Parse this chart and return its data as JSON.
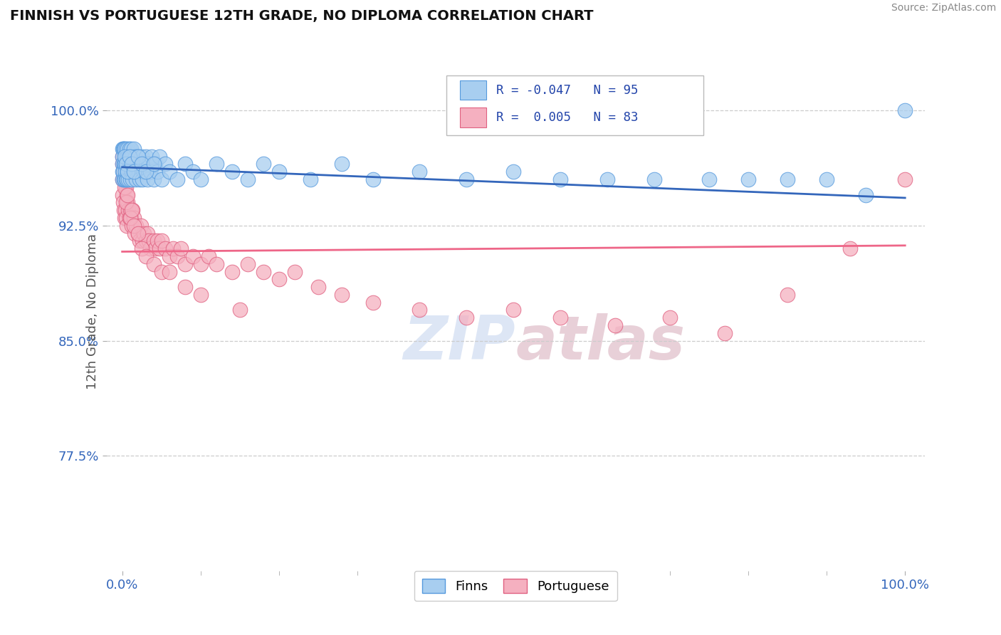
{
  "title": "FINNISH VS PORTUGUESE 12TH GRADE, NO DIPLOMA CORRELATION CHART",
  "source": "Source: ZipAtlas.com",
  "ylabel": "12th Grade, No Diploma",
  "color_finns": "#a8cef0",
  "color_finns_edge": "#5599dd",
  "color_portuguese": "#f5b0c0",
  "color_portuguese_edge": "#e06080",
  "color_line_finns": "#3366bb",
  "color_line_portuguese": "#ee6688",
  "ytick_values": [
    0.775,
    0.85,
    0.925,
    1.0
  ],
  "ytick_labels": [
    "77.5%",
    "85.0%",
    "92.5%",
    "100.0%"
  ],
  "xtick_values": [
    0.0,
    1.0
  ],
  "xtick_labels": [
    "0.0%",
    "100.0%"
  ],
  "background_color": "#ffffff",
  "grid_color": "#cccccc",
  "watermark_color": "#dde6f5",
  "finns_x": [
    0.0,
    0.0,
    0.0,
    0.0,
    0.0,
    0.001,
    0.001,
    0.002,
    0.002,
    0.002,
    0.003,
    0.003,
    0.003,
    0.004,
    0.004,
    0.005,
    0.005,
    0.005,
    0.006,
    0.006,
    0.006,
    0.007,
    0.007,
    0.008,
    0.008,
    0.009,
    0.009,
    0.01,
    0.01,
    0.011,
    0.011,
    0.012,
    0.012,
    0.013,
    0.014,
    0.015,
    0.015,
    0.016,
    0.017,
    0.018,
    0.019,
    0.02,
    0.021,
    0.022,
    0.023,
    0.025,
    0.026,
    0.027,
    0.028,
    0.03,
    0.032,
    0.034,
    0.036,
    0.038,
    0.04,
    0.042,
    0.045,
    0.048,
    0.05,
    0.055,
    0.06,
    0.07,
    0.08,
    0.09,
    0.1,
    0.12,
    0.14,
    0.16,
    0.18,
    0.2,
    0.24,
    0.28,
    0.32,
    0.38,
    0.44,
    0.5,
    0.56,
    0.62,
    0.68,
    0.75,
    0.8,
    0.85,
    0.9,
    0.95,
    1.0,
    0.003,
    0.005,
    0.007,
    0.009,
    0.012,
    0.015,
    0.02,
    0.025,
    0.03,
    0.04
  ],
  "finns_y": [
    0.975,
    0.97,
    0.965,
    0.96,
    0.955,
    0.975,
    0.96,
    0.975,
    0.965,
    0.955,
    0.975,
    0.965,
    0.955,
    0.97,
    0.96,
    0.975,
    0.965,
    0.955,
    0.97,
    0.965,
    0.955,
    0.975,
    0.96,
    0.97,
    0.955,
    0.965,
    0.975,
    0.97,
    0.955,
    0.965,
    0.975,
    0.96,
    0.97,
    0.955,
    0.965,
    0.975,
    0.96,
    0.965,
    0.97,
    0.955,
    0.965,
    0.97,
    0.96,
    0.955,
    0.965,
    0.97,
    0.955,
    0.965,
    0.96,
    0.97,
    0.955,
    0.965,
    0.96,
    0.97,
    0.955,
    0.965,
    0.96,
    0.97,
    0.955,
    0.965,
    0.96,
    0.955,
    0.965,
    0.96,
    0.955,
    0.965,
    0.96,
    0.955,
    0.965,
    0.96,
    0.955,
    0.965,
    0.955,
    0.96,
    0.955,
    0.96,
    0.955,
    0.955,
    0.955,
    0.955,
    0.955,
    0.955,
    0.955,
    0.945,
    1.0,
    0.97,
    0.965,
    0.96,
    0.97,
    0.965,
    0.96,
    0.97,
    0.965,
    0.96,
    0.965
  ],
  "portuguese_x": [
    0.0,
    0.0,
    0.0,
    0.0,
    0.001,
    0.001,
    0.002,
    0.002,
    0.003,
    0.003,
    0.004,
    0.004,
    0.005,
    0.005,
    0.006,
    0.006,
    0.007,
    0.008,
    0.009,
    0.01,
    0.011,
    0.012,
    0.013,
    0.015,
    0.016,
    0.018,
    0.02,
    0.022,
    0.024,
    0.026,
    0.028,
    0.03,
    0.032,
    0.034,
    0.036,
    0.04,
    0.042,
    0.045,
    0.048,
    0.05,
    0.055,
    0.06,
    0.065,
    0.07,
    0.075,
    0.08,
    0.09,
    0.1,
    0.11,
    0.12,
    0.14,
    0.16,
    0.18,
    0.2,
    0.22,
    0.25,
    0.28,
    0.32,
    0.38,
    0.44,
    0.5,
    0.56,
    0.63,
    0.7,
    0.77,
    0.85,
    0.93,
    1.0,
    0.003,
    0.005,
    0.007,
    0.01,
    0.012,
    0.015,
    0.02,
    0.025,
    0.03,
    0.04,
    0.05,
    0.06,
    0.08,
    0.1,
    0.15
  ],
  "portuguese_y": [
    0.97,
    0.965,
    0.955,
    0.945,
    0.96,
    0.94,
    0.955,
    0.935,
    0.96,
    0.93,
    0.955,
    0.935,
    0.95,
    0.93,
    0.945,
    0.925,
    0.94,
    0.935,
    0.93,
    0.935,
    0.93,
    0.925,
    0.935,
    0.93,
    0.92,
    0.925,
    0.92,
    0.915,
    0.925,
    0.915,
    0.92,
    0.915,
    0.92,
    0.915,
    0.91,
    0.915,
    0.91,
    0.915,
    0.91,
    0.915,
    0.91,
    0.905,
    0.91,
    0.905,
    0.91,
    0.9,
    0.905,
    0.9,
    0.905,
    0.9,
    0.895,
    0.9,
    0.895,
    0.89,
    0.895,
    0.885,
    0.88,
    0.875,
    0.87,
    0.865,
    0.87,
    0.865,
    0.86,
    0.865,
    0.855,
    0.88,
    0.91,
    0.955,
    0.95,
    0.94,
    0.945,
    0.93,
    0.935,
    0.925,
    0.92,
    0.91,
    0.905,
    0.9,
    0.895,
    0.895,
    0.885,
    0.88,
    0.87
  ]
}
